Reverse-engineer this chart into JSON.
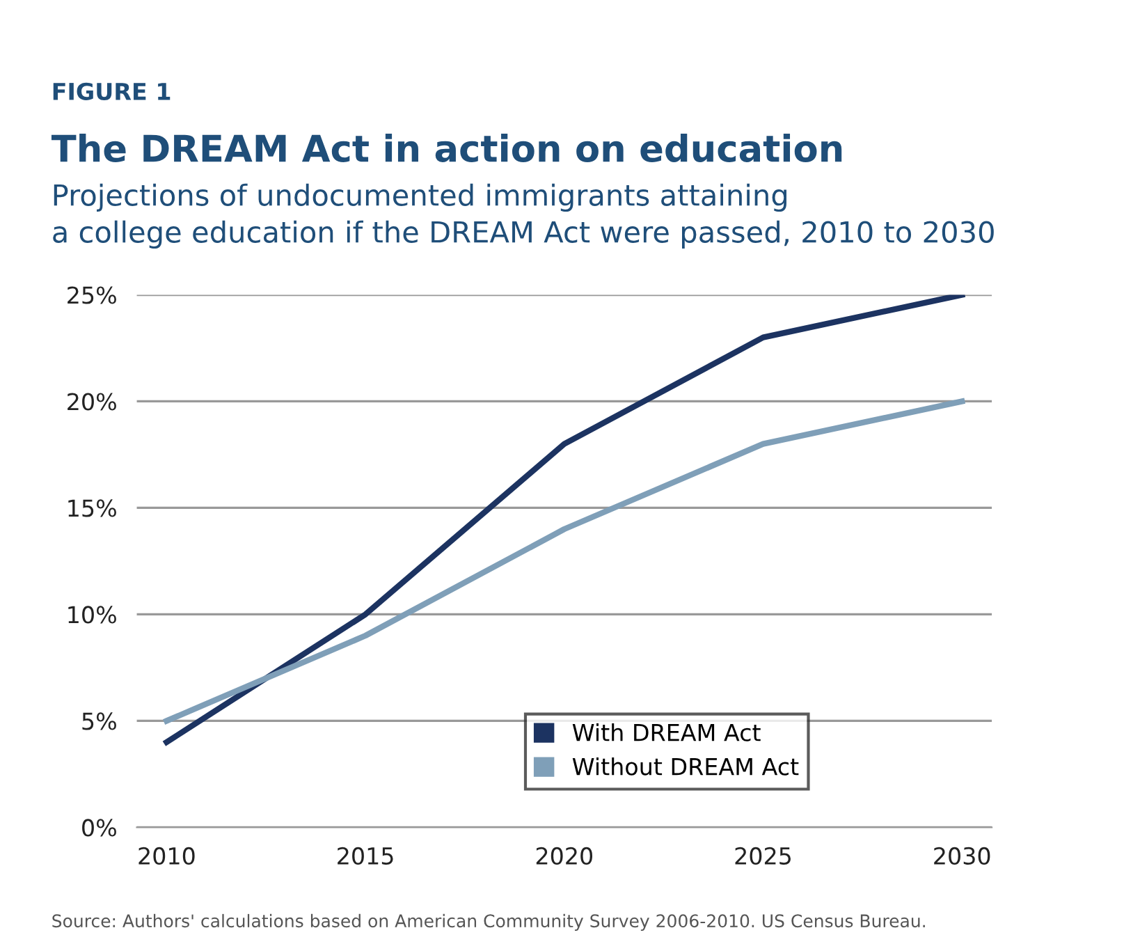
{
  "chart_data": {
    "type": "line",
    "title": "The DREAM Act in action on education",
    "subtitle": "Projections of undocumented immigrants attaining\na college education if the DREAM Act were passed, 2010 to 2030",
    "annotations": [
      "FIGURE 1",
      "Source: Authors' calculations based on American Community Survey 2006-2010. US Census Bureau."
    ],
    "categories": [
      "2010",
      "2015",
      "2020",
      "2025",
      "2030"
    ],
    "series": [
      {
        "name": "With DREAM Act",
        "color": "#1c3361",
        "values": [
          4,
          10,
          18,
          23,
          25
        ]
      },
      {
        "name": "Without DREAM Act",
        "color": "#7f9fb8",
        "values": [
          5,
          9,
          14,
          18,
          20
        ]
      }
    ],
    "ylim": [
      0,
      25
    ],
    "yticks": [
      {
        "value": 0,
        "label": "0%"
      },
      {
        "value": 5,
        "label": "5%"
      },
      {
        "value": 10,
        "label": "10%"
      },
      {
        "value": 15,
        "label": "15%"
      },
      {
        "value": 20,
        "label": "20%"
      },
      {
        "value": 25,
        "label": "25%"
      }
    ],
    "grid": "y",
    "legend": "bottom",
    "marker": "none",
    "line_style": "solid"
  }
}
